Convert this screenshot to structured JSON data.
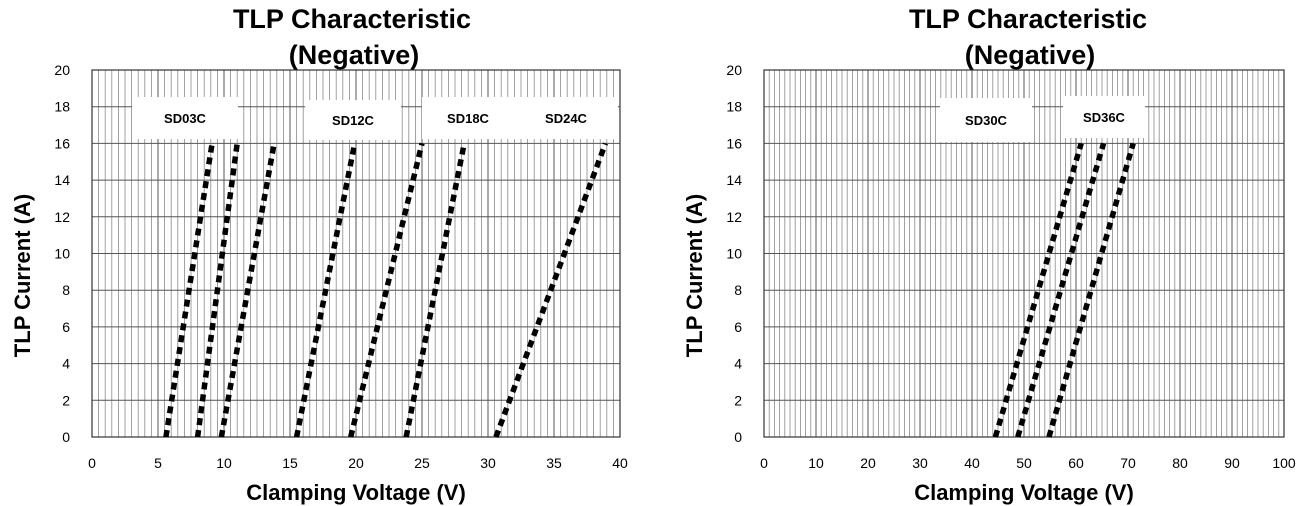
{
  "chart_data": [
    {
      "type": "line",
      "title": "TLP Characteristic",
      "subtitle": "(Negative)",
      "xlabel": "Clamping Voltage (V)",
      "ylabel": "TLP Current (A)",
      "xlim": [
        0,
        40
      ],
      "ylim": [
        0,
        20
      ],
      "xticks": [
        "0",
        "5",
        "10",
        "15",
        "20",
        "25",
        "30",
        "35",
        "40"
      ],
      "yticks": [
        "0",
        "2",
        "4",
        "6",
        "8",
        "10",
        "12",
        "14",
        "16",
        "18",
        "20"
      ],
      "grid": true,
      "series": [
        {
          "name": "SD03C",
          "x": [
            5.6,
            9.1
          ],
          "y": [
            0,
            16
          ]
        },
        {
          "name": "SD03C",
          "x": [
            8.0,
            11.0
          ],
          "y": [
            0,
            16
          ]
        },
        {
          "name": "SD03C",
          "x": [
            9.8,
            13.8
          ],
          "y": [
            0,
            16
          ]
        },
        {
          "name": "SD12C",
          "x": [
            15.5,
            19.9
          ],
          "y": [
            0,
            16
          ]
        },
        {
          "name": "SD18C",
          "x": [
            19.6,
            25.0
          ],
          "y": [
            0,
            16
          ]
        },
        {
          "name": "SD18C",
          "x": [
            23.8,
            28.2
          ],
          "y": [
            0,
            16
          ]
        },
        {
          "name": "SD24C",
          "x": [
            30.6,
            38.9
          ],
          "y": [
            0,
            16
          ]
        }
      ],
      "labels": [
        "SD03C",
        "SD12C",
        "SD18C",
        "SD24C"
      ]
    },
    {
      "type": "line",
      "title": "TLP Characteristic",
      "subtitle": "(Negative)",
      "xlabel": "Clamping Voltage (V)",
      "ylabel": "TLP Current (A)",
      "xlim": [
        0,
        100
      ],
      "ylim": [
        0,
        20
      ],
      "xticks": [
        "0",
        "10",
        "20",
        "30",
        "40",
        "50",
        "60",
        "70",
        "80",
        "90",
        "100"
      ],
      "yticks": [
        "0",
        "2",
        "4",
        "6",
        "8",
        "10",
        "12",
        "14",
        "16",
        "18",
        "20"
      ],
      "grid": true,
      "series": [
        {
          "name": "SD30C",
          "x": [
            44.5,
            61.0
          ],
          "y": [
            0,
            16
          ]
        },
        {
          "name": "SD30C",
          "x": [
            48.8,
            65.3
          ],
          "y": [
            0,
            16
          ]
        },
        {
          "name": "SD36C",
          "x": [
            54.8,
            71.0
          ],
          "y": [
            0,
            16
          ]
        }
      ],
      "labels": [
        "SD30C",
        "SD36C"
      ]
    }
  ]
}
